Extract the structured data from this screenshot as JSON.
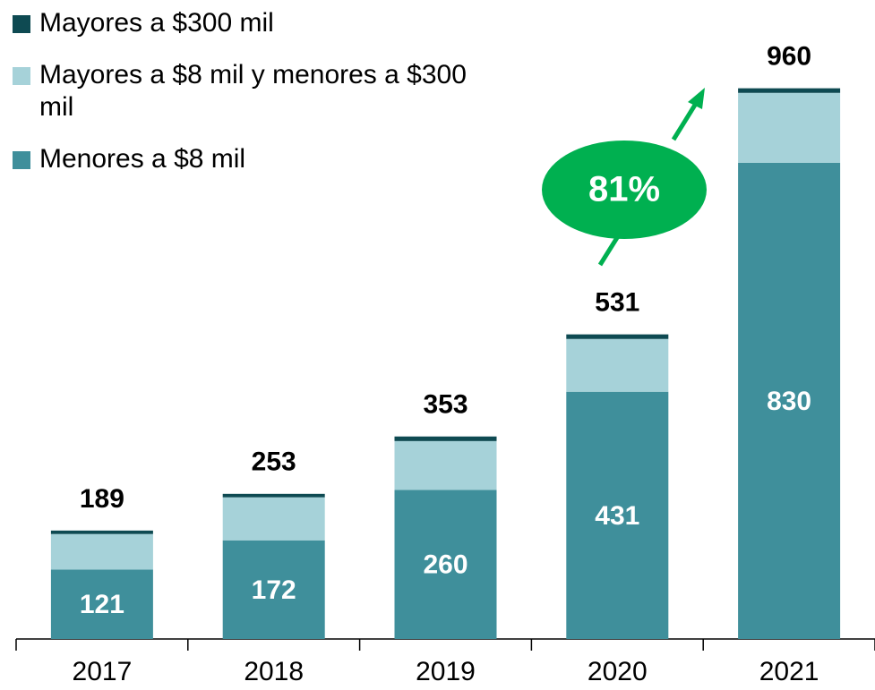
{
  "chart_data": {
    "type": "stacked_bar",
    "categories": [
      "2017",
      "2018",
      "2019",
      "2020",
      "2021"
    ],
    "series": [
      {
        "name": "Menores a $8 mil",
        "color": "#3f8f9b",
        "values": [
          121,
          172,
          260,
          431,
          830
        ],
        "show_labels": true
      },
      {
        "name": "Mayores a $8 mil y menores a $300 mil",
        "color": "#a6d2d9",
        "values": [
          62,
          75,
          85,
          92,
          122
        ]
      },
      {
        "name": "Mayores a $300 mil",
        "color": "#0e4a52",
        "values": [
          6,
          6,
          8,
          8,
          8
        ]
      }
    ],
    "totals": [
      189,
      253,
      353,
      531,
      960
    ],
    "annotation": "81%",
    "ylim": [
      0,
      1000
    ]
  }
}
